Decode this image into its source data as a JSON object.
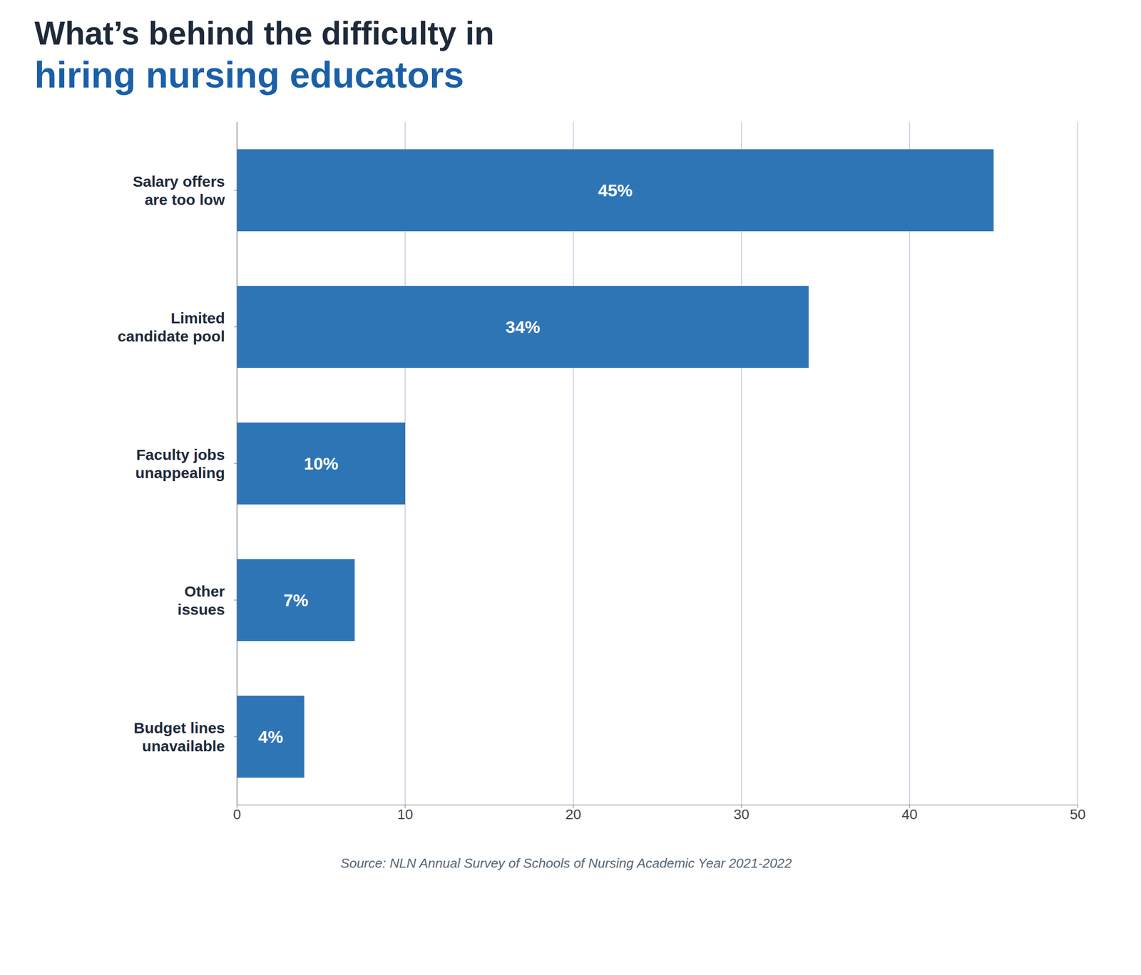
{
  "chart_data": {
    "type": "bar",
    "orientation": "horizontal",
    "title": "What’s behind the difficulty in\nhiring nursing educators",
    "categories": [
      "Salary offers\nare too low",
      "Limited\ncandidate pool",
      "Faculty jobs\nunappealing",
      "Other\nissues",
      "Budget lines\nunavailable"
    ],
    "values": [
      45,
      34,
      10,
      7,
      4
    ],
    "value_labels": [
      "45%",
      "34%",
      "10%",
      "7%",
      "4%"
    ],
    "data_labels": true,
    "color": "#2e75b6",
    "xlim": [
      0,
      50
    ],
    "xticks": [
      0,
      10,
      20,
      30,
      40,
      50
    ],
    "grid": true,
    "annotations": [
      "Source: NLN Annual Survey of Schools of Nursing Academic Year 2021-2022"
    ]
  }
}
